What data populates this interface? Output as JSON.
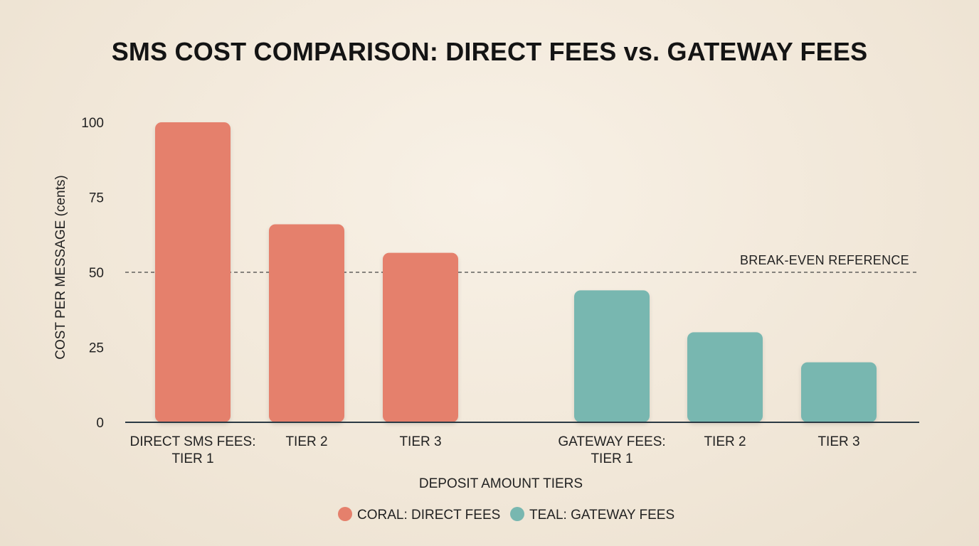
{
  "colors": {
    "direct": "#e5806c",
    "gateway": "#78b7b0",
    "axis": "#2b3a44",
    "reference": "#444444"
  },
  "chart_data": {
    "type": "bar",
    "title": "SMS COST COMPARISON: DIRECT FEES vs. GATEWAY FEES",
    "xlabel": "DEPOSIT AMOUNT TIERS",
    "ylabel": "COST PER MESSAGE (cents)",
    "ylim": [
      0,
      100
    ],
    "yticks": [
      "0",
      "25",
      "50",
      "75",
      "100"
    ],
    "grid": false,
    "legend_position": "bottom",
    "groups": [
      {
        "series": "direct",
        "categories": [
          [
            "DIRECT SMS FEES:",
            "TIER 1"
          ],
          [
            "TIER 2"
          ],
          [
            "TIER 3"
          ]
        ],
        "values": [
          100,
          66,
          56.5
        ]
      },
      {
        "series": "gateway",
        "categories": [
          [
            "GATEWAY FEES:",
            "TIER 1"
          ],
          [
            "TIER 2"
          ],
          [
            "TIER 3"
          ]
        ],
        "values": [
          44,
          30,
          20
        ]
      }
    ],
    "reference_line": {
      "value": 50,
      "label": "BREAK-EVEN REFERENCE"
    },
    "legend": [
      {
        "series": "direct",
        "label": "CORAL: DIRECT FEES"
      },
      {
        "series": "gateway",
        "label": "TEAL: GATEWAY FEES"
      }
    ]
  }
}
